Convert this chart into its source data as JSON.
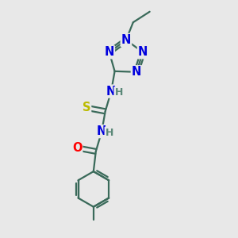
{
  "bg_color": "#e8e8e8",
  "bond_color": "#3a6a5a",
  "bond_width": 1.6,
  "atom_colors": {
    "N": "#0000dd",
    "O": "#ff0000",
    "S": "#bbbb00",
    "C": "#3a6a5a",
    "H": "#5a8878"
  },
  "font_size": 10.5,
  "figsize": [
    3.0,
    3.0
  ],
  "dpi": 100,
  "xlim": [
    0,
    10
  ],
  "ylim": [
    0,
    10
  ]
}
